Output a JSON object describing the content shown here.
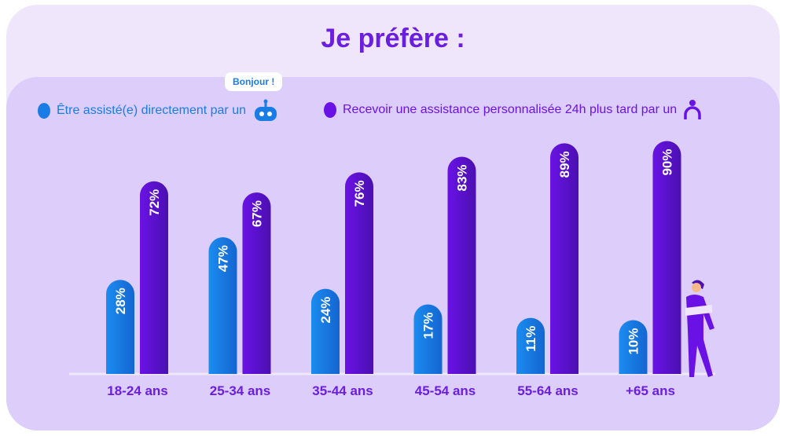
{
  "title": "Je préfère :",
  "bubble": "Bonjour !",
  "colors": {
    "series1": "#1a7de6",
    "series2": "#6a12e6"
  },
  "chart_data": {
    "type": "bar",
    "title": "Je préfère :",
    "categories": [
      "18-24 ans",
      "25-34 ans",
      "35-44 ans",
      "45-54 ans",
      "55-64 ans",
      "+65 ans"
    ],
    "series": [
      {
        "name": "Être assisté(e) directement par un",
        "values": [
          28,
          47,
          24,
          17,
          11,
          10
        ]
      },
      {
        "name": "Recevoir une assistance personnalisée 24h plus tard par un",
        "values": [
          72,
          67,
          76,
          83,
          89,
          90
        ]
      }
    ],
    "ylim": [
      0,
      100
    ],
    "legend": "top",
    "grid": false
  }
}
